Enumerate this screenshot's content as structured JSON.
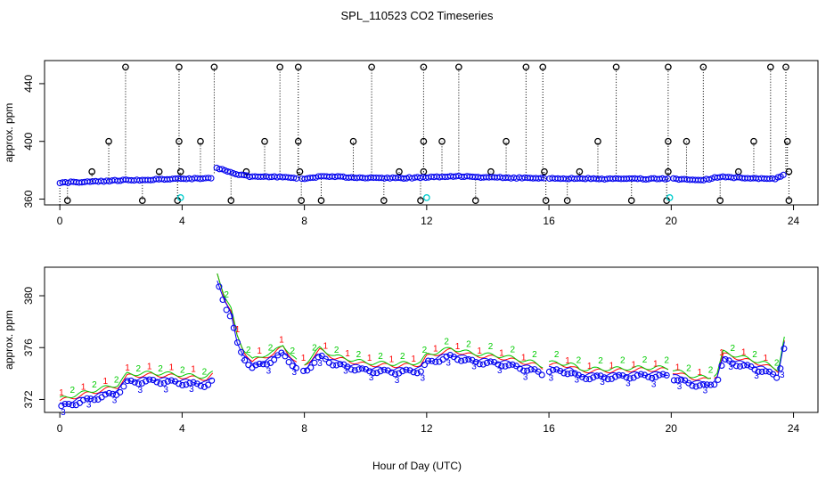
{
  "chart_data": [
    {
      "type": "scatter",
      "title": "SPL_110523  CO2 Timeseries",
      "xlabel": "",
      "ylabel": "approx. ppm",
      "xlim": [
        -0.5,
        24.8
      ],
      "ylim": [
        356,
        456
      ],
      "x_ticks": [
        0,
        4,
        8,
        12,
        16,
        20,
        24
      ],
      "x_tick_labels": [
        "0",
        "4",
        "8",
        "12",
        "16",
        "20",
        "24"
      ],
      "y_ticks": [
        360,
        400,
        440
      ],
      "y_tick_labels": [
        "360",
        "400",
        "440"
      ],
      "baseline_series": [
        {
          "x": 0.0,
          "y": 371.5
        },
        {
          "x": 1.0,
          "y": 372.0
        },
        {
          "x": 2.0,
          "y": 373.0
        },
        {
          "x": 3.0,
          "y": 373.5
        },
        {
          "x": 4.0,
          "y": 374.0
        },
        {
          "x": 5.0,
          "y": 374.5
        },
        {
          "x": 5.1,
          "y": 381.5
        },
        {
          "x": 5.4,
          "y": 380.0
        },
        {
          "x": 5.8,
          "y": 377.0
        },
        {
          "x": 6.3,
          "y": 375.5
        },
        {
          "x": 7.0,
          "y": 375.5
        },
        {
          "x": 7.6,
          "y": 375.0
        },
        {
          "x": 8.0,
          "y": 374.0
        },
        {
          "x": 8.6,
          "y": 376.0
        },
        {
          "x": 9.5,
          "y": 375.0
        },
        {
          "x": 11.0,
          "y": 374.5
        },
        {
          "x": 12.0,
          "y": 375.0
        },
        {
          "x": 13.0,
          "y": 376.0
        },
        {
          "x": 14.0,
          "y": 375.0
        },
        {
          "x": 15.5,
          "y": 374.5
        },
        {
          "x": 16.0,
          "y": 374.5
        },
        {
          "x": 18.0,
          "y": 374.0
        },
        {
          "x": 20.0,
          "y": 374.0
        },
        {
          "x": 21.0,
          "y": 373.0
        },
        {
          "x": 21.6,
          "y": 375.5
        },
        {
          "x": 22.5,
          "y": 374.5
        },
        {
          "x": 23.4,
          "y": 374.0
        },
        {
          "x": 23.7,
          "y": 377.0
        }
      ],
      "gaps": [
        [
          5.02,
          5.08
        ],
        [
          7.75,
          7.9
        ],
        [
          15.85,
          15.98
        ],
        [
          19.92,
          20.05
        ],
        [
          21.35,
          21.4
        ]
      ],
      "spikes_high": [
        2.15,
        3.9,
        5.05,
        7.2,
        7.8,
        10.2,
        11.9,
        13.05,
        15.25,
        15.8,
        18.2,
        19.9,
        21.05,
        23.25,
        23.75
      ],
      "spikes_mid": [
        1.6,
        3.9,
        4.6,
        6.7,
        7.8,
        9.6,
        11.9,
        12.5,
        14.6,
        17.6,
        19.9,
        20.5,
        22.7,
        23.8
      ],
      "spikes_low": [
        0.25,
        2.7,
        3.85,
        5.6,
        7.9,
        8.55,
        10.6,
        11.8,
        13.6,
        15.9,
        16.6,
        18.7,
        19.85,
        21.6,
        23.85
      ],
      "spikes_small": [
        1.05,
        3.25,
        3.95,
        6.1,
        7.85,
        11.1,
        11.9,
        14.1,
        15.85,
        17.0,
        19.9,
        22.2,
        23.85
      ],
      "cyan_points": [
        {
          "x": 3.95,
          "y": 361
        },
        {
          "x": 12.0,
          "y": 361
        },
        {
          "x": 19.95,
          "y": 361
        }
      ]
    },
    {
      "type": "line",
      "title": "",
      "xlabel": "Hour of Day (UTC)",
      "ylabel": "approx. ppm",
      "xlim": [
        -0.5,
        24.8
      ],
      "ylim": [
        371,
        382.2
      ],
      "x_ticks": [
        0,
        4,
        8,
        12,
        16,
        20,
        24
      ],
      "x_tick_labels": [
        "0",
        "4",
        "8",
        "12",
        "16",
        "20",
        "24"
      ],
      "y_ticks": [
        372,
        376,
        380
      ],
      "y_tick_labels": [
        "372",
        "376",
        "380"
      ],
      "series": [
        {
          "name": "1",
          "color": "#ff0000",
          "offset": 0.3
        },
        {
          "name": "2",
          "color": "#00cc00",
          "offset": 0.45
        },
        {
          "name": "3",
          "color": "#0000ff",
          "offset": 0.0
        }
      ],
      "markers": [
        "1",
        "2",
        "3"
      ],
      "base_curve": [
        {
          "x": 0.0,
          "y": 371.6
        },
        {
          "x": 1.0,
          "y": 372.2
        },
        {
          "x": 1.9,
          "y": 372.7
        },
        {
          "x": 2.2,
          "y": 373.5
        },
        {
          "x": 3.0,
          "y": 373.6
        },
        {
          "x": 3.8,
          "y": 373.5
        },
        {
          "x": 4.2,
          "y": 373.4
        },
        {
          "x": 4.8,
          "y": 373.3
        },
        {
          "x": 5.0,
          "y": 373.6
        },
        {
          "x": 5.15,
          "y": 381.3
        },
        {
          "x": 5.4,
          "y": 379.5
        },
        {
          "x": 5.6,
          "y": 378.5
        },
        {
          "x": 5.8,
          "y": 376.5
        },
        {
          "x": 6.0,
          "y": 375.5
        },
        {
          "x": 6.3,
          "y": 374.6
        },
        {
          "x": 6.7,
          "y": 375.0
        },
        {
          "x": 7.0,
          "y": 375.2
        },
        {
          "x": 7.3,
          "y": 375.8
        },
        {
          "x": 7.6,
          "y": 374.9
        },
        {
          "x": 7.75,
          "y": 374.5
        },
        {
          "x": 8.0,
          "y": 374.3
        },
        {
          "x": 8.5,
          "y": 375.5
        },
        {
          "x": 9.0,
          "y": 374.9
        },
        {
          "x": 10.0,
          "y": 374.4
        },
        {
          "x": 11.0,
          "y": 374.3
        },
        {
          "x": 11.8,
          "y": 374.4
        },
        {
          "x": 12.0,
          "y": 375.0
        },
        {
          "x": 12.8,
          "y": 375.5
        },
        {
          "x": 13.5,
          "y": 375.1
        },
        {
          "x": 14.5,
          "y": 374.9
        },
        {
          "x": 15.5,
          "y": 374.4
        },
        {
          "x": 15.85,
          "y": 374.1
        },
        {
          "x": 16.0,
          "y": 374.4
        },
        {
          "x": 16.7,
          "y": 374.3
        },
        {
          "x": 17.0,
          "y": 373.9
        },
        {
          "x": 18.0,
          "y": 373.9
        },
        {
          "x": 19.0,
          "y": 374.0
        },
        {
          "x": 19.9,
          "y": 374.0
        },
        {
          "x": 20.0,
          "y": 373.9
        },
        {
          "x": 20.6,
          "y": 373.4
        },
        {
          "x": 21.2,
          "y": 373.2
        },
        {
          "x": 21.5,
          "y": 373.6
        },
        {
          "x": 21.7,
          "y": 375.2
        },
        {
          "x": 22.5,
          "y": 374.7
        },
        {
          "x": 23.0,
          "y": 374.4
        },
        {
          "x": 23.5,
          "y": 373.9
        },
        {
          "x": 23.75,
          "y": 376.9
        }
      ],
      "gaps": [
        [
          5.02,
          5.1
        ],
        [
          7.75,
          7.95
        ],
        [
          15.85,
          16.0
        ],
        [
          19.92,
          20.05
        ],
        [
          21.35,
          21.4
        ]
      ]
    }
  ]
}
